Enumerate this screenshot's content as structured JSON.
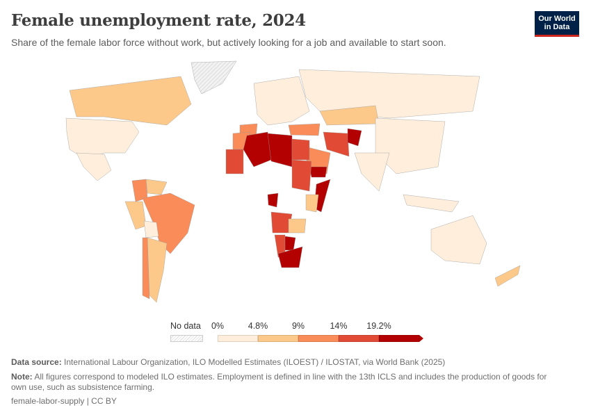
{
  "header": {
    "title": "Female unemployment rate, 2024",
    "subtitle": "Share of the female labor force without work, but actively looking for a job and available to start soon.",
    "logo_line1": "Our World",
    "logo_line2": "in Data"
  },
  "legend": {
    "no_data_label": "No data",
    "ticks": [
      "0%",
      "4.8%",
      "9%",
      "14%",
      "19.2%"
    ],
    "bins": [
      {
        "from": 0,
        "to": 4.8,
        "color": "#feeedb"
      },
      {
        "from": 4.8,
        "to": 9,
        "color": "#fdc98a"
      },
      {
        "from": 9,
        "to": 14,
        "color": "#f98c58"
      },
      {
        "from": 14,
        "to": 19.2,
        "color": "#e14b35"
      },
      {
        "from": 19.2,
        "to": null,
        "color": "#b30000"
      }
    ],
    "no_data_color": "#e6e6e6"
  },
  "footer": {
    "source_label": "Data source:",
    "source_text": "International Labour Organization, ILO Modelled Estimates (ILOEST) / ILOSTAT, via World Bank (2025)",
    "note_label": "Note:",
    "note_text": "All figures correspond to modeled ILO estimates. Employment is defined in line with the 13th ICLS and includes the production of goods for own use, such as subsistence farming.",
    "license": "female-labor-supply | CC BY"
  },
  "chart_data": {
    "type": "choropleth",
    "title": "Female unemployment rate, 2024",
    "unit": "%",
    "bin_edges": [
      0,
      4.8,
      9,
      14,
      19.2
    ],
    "regions": [
      {
        "name": "Canada",
        "bin": 1
      },
      {
        "name": "United States",
        "bin": 0
      },
      {
        "name": "Mexico",
        "bin": 0
      },
      {
        "name": "Greenland",
        "bin": "no data"
      },
      {
        "name": "Brazil",
        "bin": 2
      },
      {
        "name": "Colombia",
        "bin": 2
      },
      {
        "name": "Argentina",
        "bin": 1
      },
      {
        "name": "Chile",
        "bin": 2
      },
      {
        "name": "Peru",
        "bin": 1
      },
      {
        "name": "Bolivia",
        "bin": 0
      },
      {
        "name": "Venezuela",
        "bin": 1
      },
      {
        "name": "Spain",
        "bin": 2
      },
      {
        "name": "Europe (most)",
        "bin": 0
      },
      {
        "name": "Russia",
        "bin": 0
      },
      {
        "name": "Kazakhstan",
        "bin": 1
      },
      {
        "name": "China",
        "bin": 0
      },
      {
        "name": "India",
        "bin": 0
      },
      {
        "name": "Turkey",
        "bin": 2
      },
      {
        "name": "Iran",
        "bin": 3
      },
      {
        "name": "Afghanistan",
        "bin": 4
      },
      {
        "name": "Saudi Arabia",
        "bin": 2
      },
      {
        "name": "Yemen",
        "bin": 4
      },
      {
        "name": "Algeria",
        "bin": 4
      },
      {
        "name": "Libya",
        "bin": 4
      },
      {
        "name": "Egypt",
        "bin": 3
      },
      {
        "name": "Sudan",
        "bin": 3
      },
      {
        "name": "Somalia",
        "bin": 4
      },
      {
        "name": "Morocco",
        "bin": 2
      },
      {
        "name": "Mauritania",
        "bin": 3
      },
      {
        "name": "Gabon",
        "bin": 4
      },
      {
        "name": "Angola",
        "bin": 3
      },
      {
        "name": "Namibia",
        "bin": 3
      },
      {
        "name": "Botswana",
        "bin": 4
      },
      {
        "name": "South Africa",
        "bin": 4
      },
      {
        "name": "Zambia",
        "bin": 1
      },
      {
        "name": "Kenya",
        "bin": 1
      },
      {
        "name": "Australia",
        "bin": 0
      },
      {
        "name": "New Zealand",
        "bin": 1
      },
      {
        "name": "Indonesia",
        "bin": 0
      }
    ]
  }
}
